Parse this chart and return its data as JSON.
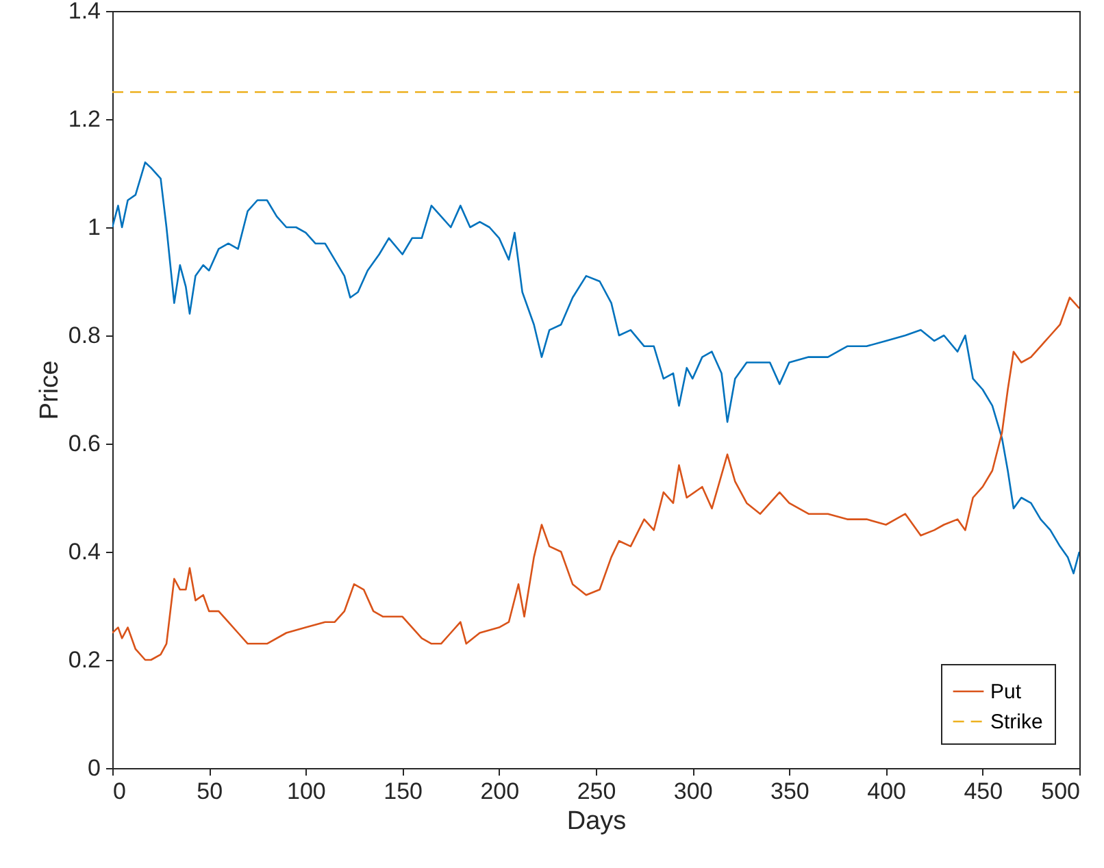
{
  "chart_data": {
    "type": "line",
    "xlabel": "Days",
    "ylabel": "Price",
    "xlim": [
      0,
      500
    ],
    "xticks": [
      0,
      50,
      100,
      150,
      200,
      250,
      300,
      350,
      400,
      450,
      500
    ],
    "ylim": [
      0,
      1.4
    ],
    "yticks": [
      0,
      0.2,
      0.4,
      0.6,
      0.8,
      1,
      1.2,
      1.4
    ],
    "grid": false,
    "legend": "bottom right",
    "line_style": "solid",
    "series": [
      {
        "color": "#0072bd",
        "x": [
          0,
          3,
          5,
          8,
          12,
          17,
          20,
          25,
          28,
          32,
          35,
          38,
          40,
          43,
          47,
          50,
          55,
          60,
          65,
          70,
          75,
          80,
          85,
          90,
          95,
          100,
          105,
          110,
          115,
          120,
          123,
          127,
          132,
          138,
          143,
          150,
          155,
          160,
          165,
          170,
          175,
          180,
          185,
          190,
          195,
          200,
          205,
          208,
          212,
          218,
          222,
          226,
          232,
          238,
          245,
          252,
          258,
          262,
          268,
          275,
          280,
          285,
          290,
          293,
          297,
          300,
          305,
          310,
          315,
          318,
          322,
          328,
          335,
          340,
          345,
          350,
          360,
          370,
          380,
          390,
          400,
          410,
          418,
          425,
          430,
          437,
          441,
          445,
          450,
          455,
          460,
          463,
          466,
          470,
          475,
          480,
          485,
          490,
          494,
          497,
          500
        ],
        "values": [
          1.0,
          1.04,
          1.0,
          1.05,
          1.06,
          1.12,
          1.11,
          1.09,
          1.0,
          0.86,
          0.93,
          0.89,
          0.84,
          0.91,
          0.93,
          0.92,
          0.96,
          0.97,
          0.96,
          1.03,
          1.05,
          1.05,
          1.02,
          1.0,
          1.0,
          0.99,
          0.97,
          0.97,
          0.94,
          0.91,
          0.87,
          0.88,
          0.92,
          0.95,
          0.98,
          0.95,
          0.98,
          0.98,
          1.04,
          1.02,
          1.0,
          1.04,
          1.0,
          1.01,
          1.0,
          0.98,
          0.94,
          0.99,
          0.88,
          0.82,
          0.76,
          0.81,
          0.82,
          0.87,
          0.91,
          0.9,
          0.86,
          0.8,
          0.81,
          0.78,
          0.78,
          0.72,
          0.73,
          0.67,
          0.74,
          0.72,
          0.76,
          0.77,
          0.73,
          0.64,
          0.72,
          0.75,
          0.75,
          0.75,
          0.71,
          0.75,
          0.76,
          0.76,
          0.78,
          0.78,
          0.79,
          0.8,
          0.81,
          0.79,
          0.8,
          0.77,
          0.8,
          0.72,
          0.7,
          0.67,
          0.61,
          0.55,
          0.48,
          0.5,
          0.49,
          0.46,
          0.44,
          0.41,
          0.39,
          0.36,
          0.4
        ]
      },
      {
        "name": "Put",
        "color": "#d95319",
        "x": [
          0,
          3,
          5,
          8,
          12,
          17,
          20,
          25,
          28,
          32,
          35,
          38,
          40,
          43,
          47,
          50,
          55,
          60,
          65,
          70,
          80,
          90,
          100,
          110,
          115,
          120,
          125,
          130,
          135,
          140,
          150,
          155,
          160,
          165,
          170,
          175,
          180,
          183,
          190,
          200,
          205,
          210,
          213,
          218,
          222,
          226,
          232,
          238,
          245,
          252,
          258,
          262,
          268,
          275,
          280,
          285,
          290,
          293,
          297,
          305,
          310,
          318,
          322,
          328,
          335,
          345,
          350,
          360,
          370,
          380,
          390,
          400,
          410,
          418,
          425,
          430,
          437,
          441,
          445,
          450,
          455,
          460,
          463,
          466,
          470,
          475,
          480,
          485,
          490,
          495,
          500
        ],
        "values": [
          0.25,
          0.26,
          0.24,
          0.26,
          0.22,
          0.2,
          0.2,
          0.21,
          0.23,
          0.35,
          0.33,
          0.33,
          0.37,
          0.31,
          0.32,
          0.29,
          0.29,
          0.27,
          0.25,
          0.23,
          0.23,
          0.25,
          0.26,
          0.27,
          0.27,
          0.29,
          0.34,
          0.33,
          0.29,
          0.28,
          0.28,
          0.26,
          0.24,
          0.23,
          0.23,
          0.25,
          0.27,
          0.23,
          0.25,
          0.26,
          0.27,
          0.34,
          0.28,
          0.39,
          0.45,
          0.41,
          0.4,
          0.34,
          0.32,
          0.33,
          0.39,
          0.42,
          0.41,
          0.46,
          0.44,
          0.51,
          0.49,
          0.56,
          0.5,
          0.52,
          0.48,
          0.58,
          0.53,
          0.49,
          0.47,
          0.51,
          0.49,
          0.47,
          0.47,
          0.46,
          0.46,
          0.45,
          0.47,
          0.43,
          0.44,
          0.45,
          0.46,
          0.44,
          0.5,
          0.52,
          0.55,
          0.62,
          0.7,
          0.77,
          0.75,
          0.76,
          0.78,
          0.8,
          0.82,
          0.87,
          0.85
        ]
      },
      {
        "name": "Strike",
        "color": "#edb120",
        "line_style": "dashed",
        "x": [
          0,
          500
        ],
        "values": [
          1.25,
          1.25
        ]
      }
    ]
  }
}
